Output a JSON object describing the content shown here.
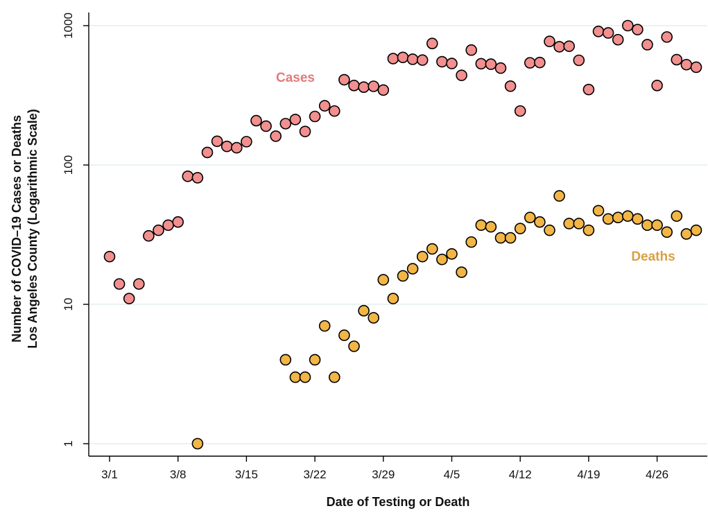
{
  "chart_data": {
    "type": "scatter",
    "title": "",
    "xlabel": "Date of Testing or Death",
    "ylabel_line1": "Number of COVID–19 Cases or Deaths",
    "ylabel_line2": "Los Angeles County (Logarithmic Scale)",
    "yscale": "log",
    "ylim": [
      0.85,
      1400
    ],
    "grid": true,
    "x_tick_labels": [
      "3/1",
      "3/8",
      "3/15",
      "3/22",
      "3/29",
      "4/5",
      "4/12",
      "4/19",
      "4/26"
    ],
    "y_tick_labels": [
      "1",
      "10",
      "100",
      "1000"
    ],
    "y_ticks": [
      1,
      10,
      100,
      1000
    ],
    "series": [
      {
        "name": "Cases",
        "color": "#f28f8f",
        "label_color": "#e07b7b",
        "points": [
          {
            "x": "3/1",
            "y": 22
          },
          {
            "x": "3/2",
            "y": 14
          },
          {
            "x": "3/3",
            "y": 11
          },
          {
            "x": "3/4",
            "y": 14
          },
          {
            "x": "3/5",
            "y": 31
          },
          {
            "x": "3/6",
            "y": 34
          },
          {
            "x": "3/7",
            "y": 37
          },
          {
            "x": "3/8",
            "y": 39
          },
          {
            "x": "3/9",
            "y": 83
          },
          {
            "x": "3/10",
            "y": 81
          },
          {
            "x": "3/11",
            "y": 123
          },
          {
            "x": "3/12",
            "y": 148
          },
          {
            "x": "3/13",
            "y": 136
          },
          {
            "x": "3/14",
            "y": 133
          },
          {
            "x": "3/15",
            "y": 147
          },
          {
            "x": "3/16",
            "y": 208
          },
          {
            "x": "3/17",
            "y": 190
          },
          {
            "x": "3/18",
            "y": 161
          },
          {
            "x": "3/19",
            "y": 198
          },
          {
            "x": "3/20",
            "y": 212
          },
          {
            "x": "3/21",
            "y": 174
          },
          {
            "x": "3/22",
            "y": 223
          },
          {
            "x": "3/23",
            "y": 266
          },
          {
            "x": "3/24",
            "y": 244
          },
          {
            "x": "3/25",
            "y": 409
          },
          {
            "x": "3/26",
            "y": 372
          },
          {
            "x": "3/27",
            "y": 362
          },
          {
            "x": "3/28",
            "y": 367
          },
          {
            "x": "3/29",
            "y": 345
          },
          {
            "x": "3/30",
            "y": 580
          },
          {
            "x": "3/31",
            "y": 592
          },
          {
            "x": "4/1",
            "y": 574
          },
          {
            "x": "4/2",
            "y": 566
          },
          {
            "x": "4/3",
            "y": 745
          },
          {
            "x": "4/4",
            "y": 551
          },
          {
            "x": "4/5",
            "y": 535
          },
          {
            "x": "4/6",
            "y": 440
          },
          {
            "x": "4/7",
            "y": 668
          },
          {
            "x": "4/8",
            "y": 533
          },
          {
            "x": "4/9",
            "y": 529
          },
          {
            "x": "4/10",
            "y": 496
          },
          {
            "x": "4/11",
            "y": 368
          },
          {
            "x": "4/12",
            "y": 244
          },
          {
            "x": "4/13",
            "y": 541
          },
          {
            "x": "4/14",
            "y": 544
          },
          {
            "x": "4/15",
            "y": 771
          },
          {
            "x": "4/16",
            "y": 706
          },
          {
            "x": "4/17",
            "y": 712
          },
          {
            "x": "4/18",
            "y": 564
          },
          {
            "x": "4/19",
            "y": 348
          },
          {
            "x": "4/20",
            "y": 909
          },
          {
            "x": "4/21",
            "y": 887
          },
          {
            "x": "4/22",
            "y": 793
          },
          {
            "x": "4/23",
            "y": 1000
          },
          {
            "x": "4/24",
            "y": 937
          },
          {
            "x": "4/25",
            "y": 730
          },
          {
            "x": "4/26",
            "y": 372
          },
          {
            "x": "4/27",
            "y": 829
          },
          {
            "x": "4/28",
            "y": 570
          },
          {
            "x": "4/29",
            "y": 525
          },
          {
            "x": "4/30",
            "y": 503
          }
        ]
      },
      {
        "name": "Deaths",
        "color": "#f2b647",
        "label_color": "#d9a043",
        "points": [
          {
            "x": "3/10",
            "y": 1
          },
          {
            "x": "3/19",
            "y": 4
          },
          {
            "x": "3/20",
            "y": 3
          },
          {
            "x": "3/21",
            "y": 3
          },
          {
            "x": "3/22",
            "y": 4
          },
          {
            "x": "3/23",
            "y": 7
          },
          {
            "x": "3/24",
            "y": 3
          },
          {
            "x": "3/25",
            "y": 6
          },
          {
            "x": "3/26",
            "y": 5
          },
          {
            "x": "3/27",
            "y": 9
          },
          {
            "x": "3/28",
            "y": 8
          },
          {
            "x": "3/29",
            "y": 15
          },
          {
            "x": "3/30",
            "y": 11
          },
          {
            "x": "3/31",
            "y": 16
          },
          {
            "x": "4/1",
            "y": 18
          },
          {
            "x": "4/2",
            "y": 22
          },
          {
            "x": "4/3",
            "y": 25
          },
          {
            "x": "4/4",
            "y": 21
          },
          {
            "x": "4/5",
            "y": 23
          },
          {
            "x": "4/6",
            "y": 17
          },
          {
            "x": "4/7",
            "y": 28
          },
          {
            "x": "4/8",
            "y": 37
          },
          {
            "x": "4/9",
            "y": 36
          },
          {
            "x": "4/10",
            "y": 30
          },
          {
            "x": "4/11",
            "y": 30
          },
          {
            "x": "4/12",
            "y": 35
          },
          {
            "x": "4/13",
            "y": 42
          },
          {
            "x": "4/14",
            "y": 39
          },
          {
            "x": "4/15",
            "y": 34
          },
          {
            "x": "4/16",
            "y": 60
          },
          {
            "x": "4/17",
            "y": 38
          },
          {
            "x": "4/18",
            "y": 38
          },
          {
            "x": "4/19",
            "y": 34
          },
          {
            "x": "4/20",
            "y": 47
          },
          {
            "x": "4/21",
            "y": 41
          },
          {
            "x": "4/22",
            "y": 42
          },
          {
            "x": "4/23",
            "y": 43
          },
          {
            "x": "4/24",
            "y": 41
          },
          {
            "x": "4/25",
            "y": 37
          },
          {
            "x": "4/26",
            "y": 37
          },
          {
            "x": "4/27",
            "y": 33
          },
          {
            "x": "4/28",
            "y": 43
          },
          {
            "x": "4/29",
            "y": 32
          },
          {
            "x": "4/30",
            "y": 34
          }
        ]
      }
    ]
  }
}
